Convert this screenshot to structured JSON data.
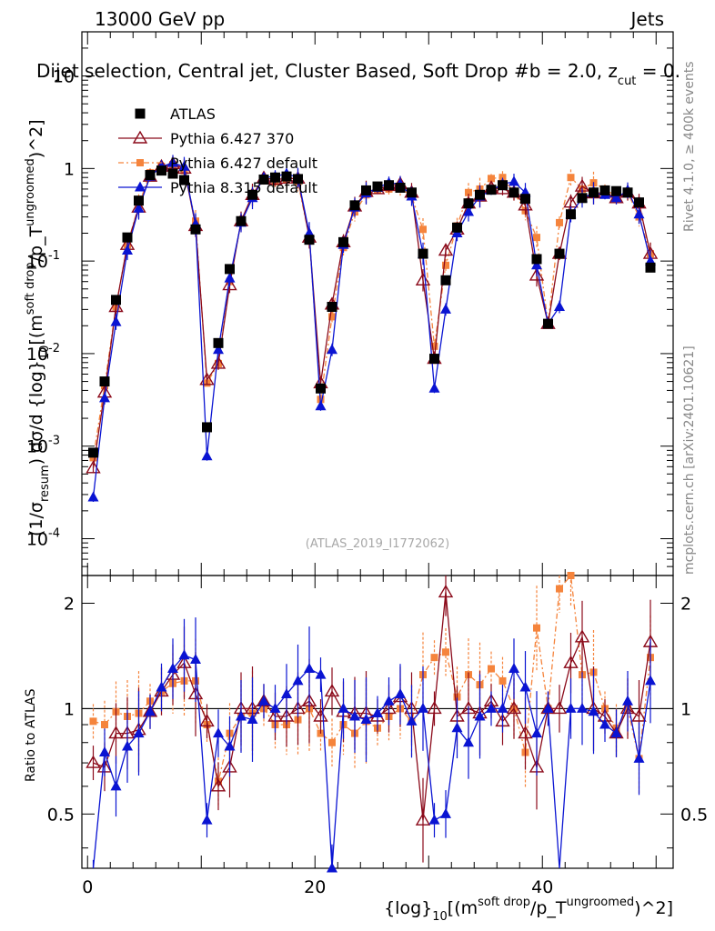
{
  "header": {
    "energy_label": "13000 GeV pp",
    "category": "Jets"
  },
  "title": "Dijet selection, Central jet, Cluster Based, Soft Drop #b = 2.0, z",
  "title_sub": "cut",
  "title_tail": " = 0.",
  "side_labels": {
    "rivet": "Rivet 4.1.0, ≥ 400k events",
    "mcplots": "mcplots.cern.ch [arXiv:2401.10621]"
  },
  "watermark": "(ATLAS_2019_I1772062)",
  "ylabel_main": "(1/σ_{resum}) dσ/d {log}_{10}[(m^{soft drop}/p_T^{ungroomed})^2]",
  "ylabel_ratio": "Ratio to ATLAS",
  "xlabel": "{log}_{10}[(m^{soft drop}/p_T^{ungroomed})^2]",
  "colors": {
    "atlas": "#000000",
    "py6_370": "#8b0a1a",
    "py6_def": "#f5843c",
    "py8": "#0a14d2"
  },
  "chart_data": {
    "type": "scatter",
    "x_range": [
      -0.5,
      51.5
    ],
    "y_range_main": [
      4e-05,
      30
    ],
    "y_scale_main": "log",
    "y_range_ratio": [
      0.35,
      2.4
    ],
    "y_scale_ratio": "log",
    "x_ticks": [
      0,
      20,
      40
    ],
    "y_ticks_main": [
      {
        "v": 0.0001,
        "label": "10",
        "exp": "-4"
      },
      {
        "v": 0.001,
        "label": "10",
        "exp": "-3"
      },
      {
        "v": 0.01,
        "label": "10",
        "exp": "-2"
      },
      {
        "v": 0.1,
        "label": "10",
        "exp": "-1"
      },
      {
        "v": 1,
        "label": "1",
        "exp": ""
      },
      {
        "v": 10,
        "label": "10",
        "exp": ""
      }
    ],
    "y_ticks_ratio": [
      {
        "v": 0.5,
        "label": "0.5"
      },
      {
        "v": 1,
        "label": "1"
      },
      {
        "v": 2,
        "label": "2"
      }
    ],
    "x": [
      0.5,
      1.5,
      2.5,
      3.5,
      4.5,
      5.5,
      6.5,
      7.5,
      8.5,
      9.5,
      10.5,
      11.5,
      12.5,
      13.5,
      14.5,
      15.5,
      16.5,
      17.5,
      18.5,
      19.5,
      20.5,
      21.5,
      22.5,
      23.5,
      24.5,
      25.5,
      26.5,
      27.5,
      28.5,
      29.5,
      30.5,
      31.5,
      32.5,
      33.5,
      34.5,
      35.5,
      36.5,
      37.5,
      38.5,
      39.5,
      40.5,
      41.5,
      42.5,
      43.5,
      44.5,
      45.5,
      46.5,
      47.5,
      48.5,
      49.5
    ],
    "series": [
      {
        "name": "ATLAS",
        "key": "atlas",
        "marker": "square",
        "values": [
          0.00085,
          0.005,
          0.038,
          0.18,
          0.45,
          0.85,
          0.95,
          0.88,
          0.75,
          0.22,
          0.0016,
          0.013,
          0.082,
          0.27,
          0.52,
          0.76,
          0.8,
          0.82,
          0.77,
          0.17,
          0.0042,
          0.032,
          0.16,
          0.4,
          0.58,
          0.64,
          0.66,
          0.62,
          0.55,
          0.12,
          0.0088,
          0.062,
          0.23,
          0.42,
          0.52,
          0.59,
          0.66,
          0.55,
          0.47,
          0.105,
          0.021,
          0.12,
          0.32,
          0.48,
          0.55,
          0.58,
          0.57,
          0.55,
          0.43,
          0.085
        ],
        "ratio": [
          1,
          1,
          1,
          1,
          1,
          1,
          1,
          1,
          1,
          1,
          1,
          1,
          1,
          1,
          1,
          1,
          1,
          1,
          1,
          1,
          1,
          1,
          1,
          1,
          1,
          1,
          1,
          1,
          1,
          1,
          1,
          1,
          1,
          1,
          1,
          1,
          1,
          1,
          1,
          1,
          1,
          1,
          1,
          1,
          1,
          1,
          1,
          1,
          1,
          1
        ]
      },
      {
        "name": "Pythia 6.427 370",
        "key": "py6_370",
        "marker": "open-triangle",
        "values": [
          0.00058,
          0.0038,
          0.032,
          0.15,
          0.38,
          0.82,
          1.05,
          1.12,
          1.0,
          0.24,
          0.0052,
          0.0078,
          0.055,
          0.27,
          0.52,
          0.79,
          0.76,
          0.78,
          0.78,
          0.18,
          0.0048,
          0.034,
          0.16,
          0.39,
          0.56,
          0.6,
          0.65,
          0.68,
          0.55,
          0.062,
          0.0088,
          0.13,
          0.22,
          0.42,
          0.5,
          0.62,
          0.6,
          0.55,
          0.4,
          0.07,
          0.021,
          0.12,
          0.43,
          0.64,
          0.54,
          0.55,
          0.48,
          0.55,
          0.42,
          0.12
        ],
        "ratio": [
          0.7,
          0.68,
          0.85,
          0.85,
          0.87,
          0.98,
          1.12,
          1.25,
          1.35,
          1.1,
          0.92,
          0.6,
          0.68,
          1.0,
          1.0,
          1.05,
          0.95,
          0.95,
          1.0,
          1.05,
          0.95,
          1.12,
          0.98,
          0.97,
          0.97,
          0.95,
          1.0,
          1.08,
          1.0,
          0.48,
          1.0,
          2.15,
          0.95,
          1.0,
          0.97,
          1.05,
          0.92,
          1.0,
          0.85,
          0.68,
          1.0,
          1.0,
          1.35,
          1.6,
          1.0,
          0.95,
          0.85,
          1.0,
          0.95,
          1.55
        ]
      },
      {
        "name": "Pythia 6.427 default",
        "key": "py6_def",
        "marker": "filled-square-small",
        "values": [
          0.00075,
          0.0045,
          0.032,
          0.15,
          0.4,
          0.9,
          1.05,
          1.1,
          0.95,
          0.27,
          0.0048,
          0.0078,
          0.06,
          0.26,
          0.5,
          0.75,
          0.72,
          0.75,
          0.72,
          0.18,
          0.0032,
          0.025,
          0.14,
          0.34,
          0.52,
          0.58,
          0.6,
          0.62,
          0.5,
          0.22,
          0.012,
          0.09,
          0.24,
          0.55,
          0.6,
          0.78,
          0.8,
          0.55,
          0.35,
          0.18,
          0.021,
          0.26,
          0.8,
          0.6,
          0.7,
          0.6,
          0.5,
          0.55,
          0.3,
          0.12
        ],
        "ratio": [
          0.92,
          0.9,
          0.98,
          0.95,
          0.97,
          1.05,
          1.12,
          1.18,
          1.2,
          1.2,
          0.9,
          0.62,
          0.85,
          0.95,
          0.97,
          1.0,
          0.9,
          0.9,
          0.93,
          1.0,
          0.85,
          0.8,
          0.9,
          0.85,
          0.92,
          0.88,
          0.95,
          1.0,
          0.92,
          1.25,
          1.4,
          1.45,
          1.08,
          1.25,
          1.17,
          1.3,
          1.2,
          1.0,
          0.75,
          1.7,
          1.0,
          2.2,
          2.4,
          1.25,
          1.27,
          1.0,
          0.88,
          1.0,
          0.72,
          1.4
        ]
      },
      {
        "name": "Pythia 8.315 default",
        "key": "py8",
        "marker": "filled-triangle",
        "values": [
          0.00028,
          0.0033,
          0.022,
          0.13,
          0.37,
          0.82,
          1.05,
          1.15,
          1.05,
          0.25,
          0.00078,
          0.011,
          0.065,
          0.26,
          0.48,
          0.8,
          0.82,
          0.88,
          0.8,
          0.2,
          0.0027,
          0.011,
          0.15,
          0.38,
          0.54,
          0.62,
          0.7,
          0.68,
          0.5,
          0.12,
          0.0042,
          0.03,
          0.2,
          0.34,
          0.5,
          0.58,
          0.68,
          0.72,
          0.55,
          0.09,
          0.021,
          0.032,
          0.32,
          0.48,
          0.54,
          0.52,
          0.48,
          0.58,
          0.32,
          0.1
        ],
        "ratio": [
          0.33,
          0.75,
          0.6,
          0.78,
          0.85,
          0.98,
          1.15,
          1.3,
          1.42,
          1.38,
          0.48,
          0.85,
          0.78,
          0.95,
          0.93,
          1.05,
          1.0,
          1.1,
          1.2,
          1.3,
          1.25,
          0.35,
          1.0,
          0.95,
          0.93,
          0.97,
          1.05,
          1.1,
          0.92,
          1.0,
          0.48,
          0.5,
          0.88,
          0.8,
          0.95,
          1.0,
          1.0,
          1.3,
          1.15,
          0.85,
          1.0,
          0.27,
          1.0,
          1.0,
          0.98,
          0.9,
          0.85,
          1.05,
          0.72,
          1.2
        ]
      }
    ]
  }
}
